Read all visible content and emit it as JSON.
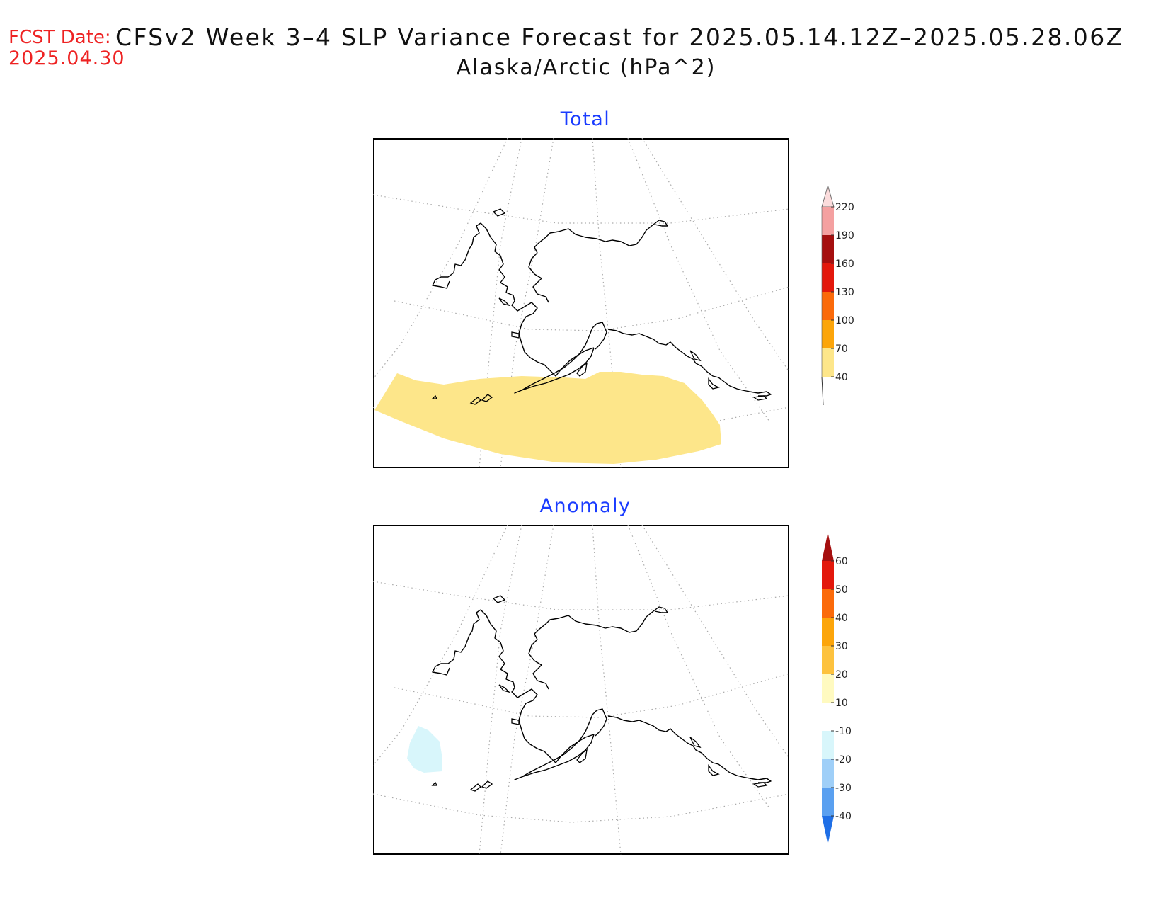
{
  "header": {
    "fcst_label": "FCST Date:",
    "fcst_date": "2025.04.30",
    "title": "CFSv2 Week 3–4 SLP Variance Forecast for 2025.05.14.12Z–2025.05.28.06Z",
    "subtitle": "Alaska/Arctic (hPa^2)"
  },
  "panels": [
    {
      "title": "Total",
      "colorbar": {
        "levels": [
          "40",
          "70",
          "100",
          "130",
          "160",
          "190",
          "220"
        ],
        "colors": [
          "#fde68a",
          "#fca50a",
          "#fb6a0a",
          "#e3180c",
          "#a50f0f",
          "#f4a0a0",
          "#fbdcdc"
        ],
        "low_end": "open",
        "high_end": "arrow"
      },
      "shaded_regions": [
        {
          "label": "40-70",
          "color": "#fde68a"
        }
      ]
    },
    {
      "title": "Anomaly",
      "colorbar": {
        "levels": [
          "-40",
          "-30",
          "-20",
          "-10",
          "10",
          "20",
          "30",
          "40",
          "50",
          "60"
        ],
        "colors": [
          "#1f6fe6",
          "#5aa0f0",
          "#9fcff8",
          "#d8f6fb",
          "#ffffff",
          "#fffac0",
          "#fdc23e",
          "#fca50a",
          "#fb6a0a",
          "#e3180c",
          "#a50f0f"
        ],
        "low_end": "arrow",
        "high_end": "arrow"
      },
      "shaded_regions": [
        {
          "label": "-20--10",
          "color": "#d8f6fb"
        }
      ]
    }
  ]
}
